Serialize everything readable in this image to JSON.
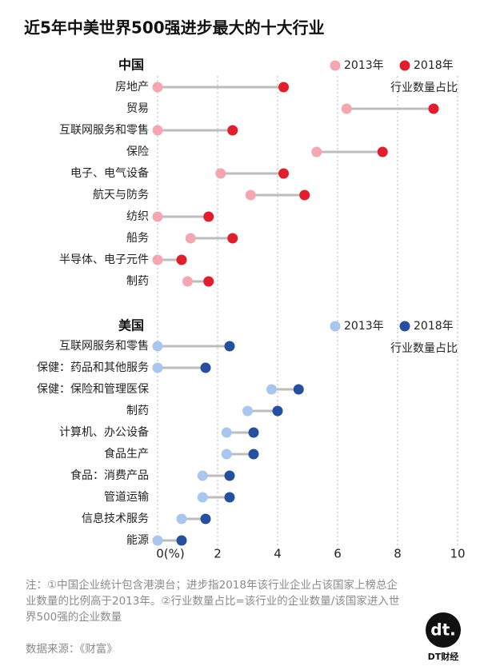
{
  "title": "近5年中美世界500强进步最大的十大行业",
  "chart_data": [
    {
      "type": "dumbbell",
      "panel_label": "中国",
      "unit_label": "行业数量占比",
      "categories": [
        "房地产",
        "贸易",
        "互联网服务和零售",
        "保险",
        "电子、电气设备",
        "航天与防务",
        "纺织",
        "船务",
        "半导体、电子元件",
        "制药"
      ],
      "series": [
        {
          "name": "2013年",
          "color": "#f4a7b1",
          "values": [
            0,
            6.3,
            0,
            5.3,
            2.1,
            3.1,
            0,
            1.1,
            0,
            1.0
          ]
        },
        {
          "name": "2018年",
          "color": "#e01f2d",
          "values": [
            4.2,
            9.2,
            2.5,
            7.5,
            4.2,
            4.9,
            1.7,
            2.5,
            0.8,
            1.7
          ]
        }
      ],
      "xlim": [
        0,
        10
      ]
    },
    {
      "type": "dumbbell",
      "panel_label": "美国",
      "unit_label": "行业数量占比",
      "categories": [
        "互联网服务和零售",
        "保健：药品和其他服务",
        "保健：保险和管理医保",
        "制药",
        "计算机、办公设备",
        "食品生产",
        "食品：消费产品",
        "管道运输",
        "信息技术服务",
        "能源"
      ],
      "series": [
        {
          "name": "2013年",
          "color": "#a9c6ee",
          "values": [
            0,
            0,
            3.8,
            3.0,
            2.3,
            2.3,
            1.5,
            1.5,
            0.8,
            0
          ]
        },
        {
          "name": "2018年",
          "color": "#24509f",
          "values": [
            2.4,
            1.6,
            4.7,
            4.0,
            3.2,
            3.2,
            2.4,
            2.4,
            1.6,
            0.8
          ]
        }
      ],
      "xlim": [
        0,
        10
      ],
      "xticks": [
        {
          "value": 0,
          "label": "0(%)"
        },
        2,
        4,
        6,
        8,
        10
      ],
      "grid": true
    }
  ],
  "note": "注：①中国企业统计包含港澳台；进步指2018年该行业企业占该国家上榜总企业数量的比例高于2013年。②行业数量占比=该行业的企业数量/该国家进入世界500强的企业数量",
  "source": "数据来源：《财富》",
  "logo": {
    "mark": "dt.",
    "name": "DT财经"
  }
}
